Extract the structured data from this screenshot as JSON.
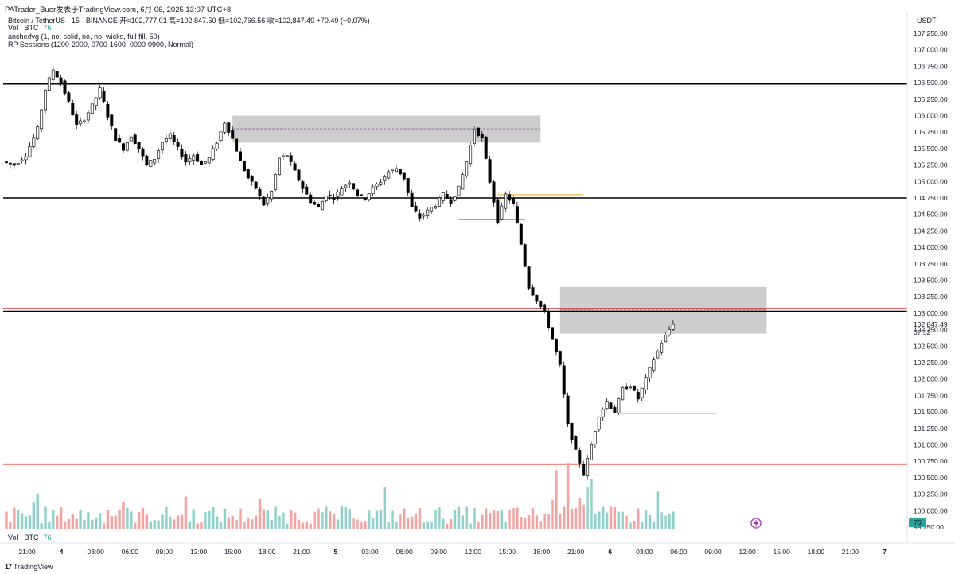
{
  "header": {
    "author": "PATrader_Buer发表于TradingView.com,   6月 06, 2025 13:07 UTC+8",
    "symbol_line": "Bitcoin / TetherUS · 15 · BINANCE  开=102,777.01  高=102,847.50  低=102,766.56  收=102,847.49  +70.49 (+0.07%)",
    "vol_label": "Vol · BTC",
    "vol_value": "76",
    "indicator1": "anche/fvg (1, no, solid, no, no, wicks, full fill, 50)",
    "indicator2": "RP Sessions (1200-2000, 0700-1600, 0000-0900, Normal)"
  },
  "axis": {
    "currency": "USDT",
    "price_ticks": [
      "107,250.00",
      "107,000.00",
      "106,750.00",
      "106,500.00",
      "106,250.00",
      "106,000.00",
      "105,750.00",
      "105,500.00",
      "105,250.00",
      "105,000.00",
      "104,750.00",
      "104,500.00",
      "104,250.00",
      "104,000.00",
      "103,750.00",
      "103,500.00",
      "103,250.00",
      "103,000.00",
      "102,750.00",
      "102,500.00",
      "102,250.00",
      "102,000.00",
      "101,750.00",
      "101,500.00",
      "101,250.00",
      "101,000.00",
      "100,750.00",
      "100,500.00",
      "100,250.00",
      "100,000.00",
      "99,750.00"
    ],
    "time_ticks": [
      "21:00",
      "4",
      "03:00",
      "06:00",
      "09:00",
      "12:00",
      "15:00",
      "18:00",
      "21:00",
      "5",
      "03:00",
      "06:00",
      "09:00",
      "12:00",
      "15:00",
      "18:00",
      "21:00",
      "6",
      "03:00",
      "06:00",
      "09:00",
      "12:00",
      "15:00",
      "18:00",
      "21:00",
      "7"
    ],
    "current_price": "102,847.49",
    "countdown": "07:52",
    "volume_badge": "76"
  },
  "footer": {
    "vol_label": "Vol · BTC",
    "vol_value": "76",
    "brand": "TradingView",
    "brand_logo": "17"
  },
  "colors": {
    "up": "#26a69a",
    "down": "#ef5350",
    "zone": "#c8c8c8",
    "level": "#000000",
    "red_level": "#d32f2f",
    "blue_level": "#5b8def",
    "orange_level": "#f5b041",
    "green_level": "#66bb6a"
  },
  "chart_data": {
    "type": "candlestick",
    "symbol": "Bitcoin / TetherUS",
    "interval": "15",
    "exchange": "BINANCE",
    "ylim": [
      99750,
      107375
    ],
    "ohlc": {
      "open": 102777.01,
      "high": 102847.5,
      "low": 102766.56,
      "close": 102847.49
    },
    "change": "+70.49 (+0.07%)",
    "price_path": [
      [
        0,
        105300
      ],
      [
        3,
        105250
      ],
      [
        6,
        105400
      ],
      [
        9,
        105800
      ],
      [
        11,
        106400
      ],
      [
        13,
        106700
      ],
      [
        15,
        106500
      ],
      [
        17,
        106200
      ],
      [
        19,
        105850
      ],
      [
        21,
        105950
      ],
      [
        23,
        106150
      ],
      [
        25,
        106400
      ],
      [
        27,
        106000
      ],
      [
        29,
        105650
      ],
      [
        31,
        105500
      ],
      [
        33,
        105700
      ],
      [
        35,
        105500
      ],
      [
        37,
        105250
      ],
      [
        39,
        105350
      ],
      [
        41,
        105600
      ],
      [
        43,
        105700
      ],
      [
        45,
        105500
      ],
      [
        47,
        105300
      ],
      [
        49,
        105400
      ],
      [
        51,
        105250
      ],
      [
        53,
        105350
      ],
      [
        55,
        105600
      ],
      [
        57,
        105900
      ],
      [
        59,
        105650
      ],
      [
        61,
        105300
      ],
      [
        63,
        105050
      ],
      [
        65,
        104900
      ],
      [
        67,
        104650
      ],
      [
        69,
        104850
      ],
      [
        71,
        105350
      ],
      [
        73,
        105400
      ],
      [
        75,
        105150
      ],
      [
        77,
        104900
      ],
      [
        79,
        104700
      ],
      [
        81,
        104600
      ],
      [
        83,
        104800
      ],
      [
        85,
        104750
      ],
      [
        87,
        104900
      ],
      [
        89,
        105000
      ],
      [
        91,
        104800
      ],
      [
        93,
        104750
      ],
      [
        95,
        104900
      ],
      [
        97,
        105000
      ],
      [
        99,
        105150
      ],
      [
        101,
        105200
      ],
      [
        103,
        105050
      ],
      [
        105,
        104600
      ],
      [
        107,
        104450
      ],
      [
        109,
        104550
      ],
      [
        111,
        104650
      ],
      [
        113,
        104800
      ],
      [
        115,
        104700
      ],
      [
        117,
        104900
      ],
      [
        119,
        105300
      ],
      [
        121,
        105800
      ],
      [
        123,
        105650
      ],
      [
        125,
        105000
      ],
      [
        127,
        104400
      ],
      [
        129,
        104800
      ],
      [
        131,
        104650
      ],
      [
        133,
        104050
      ],
      [
        135,
        103400
      ],
      [
        137,
        103200
      ],
      [
        139,
        103000
      ],
      [
        141,
        102600
      ],
      [
        143,
        102200
      ],
      [
        145,
        101300
      ],
      [
        147,
        100900
      ],
      [
        149,
        100550
      ],
      [
        151,
        101000
      ],
      [
        153,
        101450
      ],
      [
        155,
        101650
      ],
      [
        157,
        101500
      ],
      [
        159,
        101850
      ],
      [
        161,
        101900
      ],
      [
        163,
        101700
      ],
      [
        165,
        102000
      ],
      [
        167,
        102300
      ],
      [
        169,
        102550
      ],
      [
        171,
        102750
      ],
      [
        172,
        102847
      ]
    ],
    "zones": [
      {
        "top": 106000,
        "bottom": 105590,
        "from": 58,
        "to": 137,
        "midline": 105800
      },
      {
        "top": 103400,
        "bottom": 102690,
        "from": 142,
        "to": 195,
        "midline": 103050
      }
    ],
    "horizontal_levels": [
      {
        "price": 106480,
        "color": "black"
      },
      {
        "price": 104750,
        "color": "black"
      },
      {
        "price": 103070,
        "color": "red"
      },
      {
        "price": 103030,
        "color": "black"
      },
      {
        "price": 100700,
        "color": "pink"
      },
      {
        "price": 104800,
        "color": "orange",
        "from": 126,
        "to": 148
      },
      {
        "price": 104420,
        "color": "green",
        "from": 116,
        "to": 133
      },
      {
        "price": 101480,
        "color": "blue",
        "from": 157,
        "to": 182
      }
    ]
  }
}
